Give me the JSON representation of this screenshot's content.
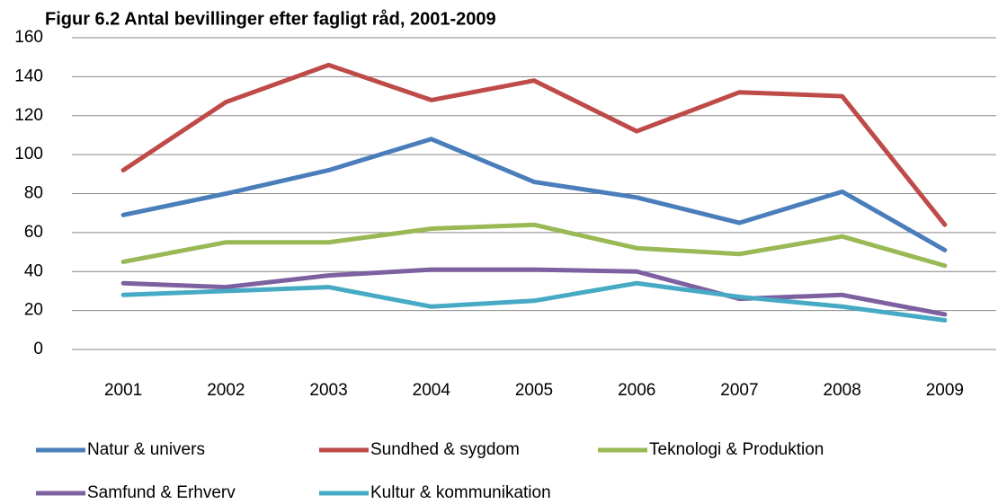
{
  "chart_data": {
    "type": "line",
    "title": "Figur 6.2 Antal bevillinger efter fagligt råd, 2001-2009",
    "categories": [
      "2001",
      "2002",
      "2003",
      "2004",
      "2005",
      "2006",
      "2007",
      "2008",
      "2009"
    ],
    "series": [
      {
        "name": "Natur & univers",
        "color": "#4a7ebb",
        "values": [
          69,
          80,
          92,
          108,
          86,
          78,
          65,
          81,
          51
        ]
      },
      {
        "name": "Sundhed & sygdom",
        "color": "#be4b48",
        "values": [
          92,
          127,
          146,
          128,
          138,
          112,
          132,
          130,
          64
        ]
      },
      {
        "name": "Teknologi & Produktion",
        "color": "#98b954",
        "values": [
          45,
          55,
          55,
          62,
          64,
          52,
          49,
          58,
          43
        ]
      },
      {
        "name": "Samfund & Erhverv",
        "color": "#7d60a0",
        "values": [
          34,
          32,
          38,
          41,
          41,
          40,
          26,
          28,
          18
        ]
      },
      {
        "name": "Kultur & kommunikation",
        "color": "#46aac5",
        "values": [
          28,
          30,
          32,
          22,
          25,
          34,
          27,
          22,
          15
        ]
      }
    ],
    "ylim": [
      0,
      160
    ],
    "yticks": [
      0,
      20,
      40,
      60,
      80,
      100,
      120,
      140,
      160
    ],
    "grid": true,
    "legend": "bottom"
  }
}
